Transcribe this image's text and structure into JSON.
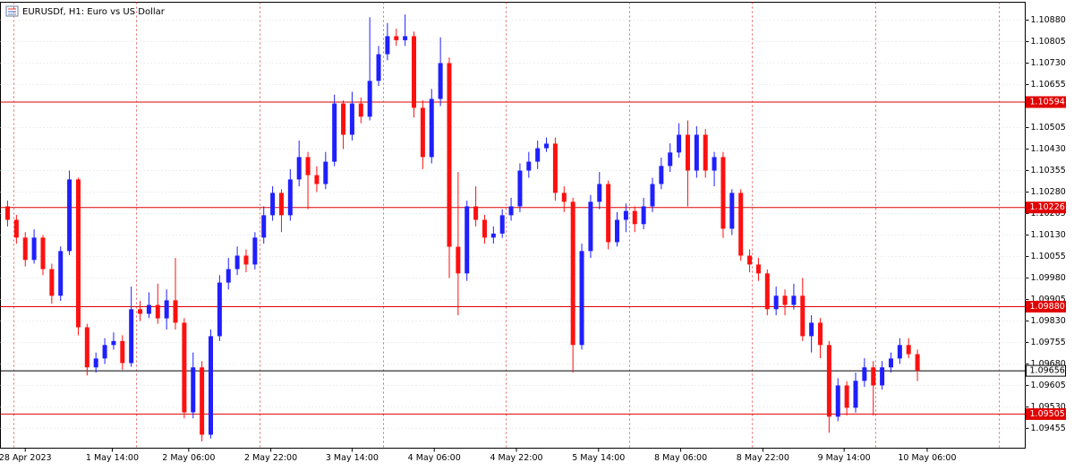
{
  "chart_data": {
    "type": "candlestick",
    "title": "EURUSDf, H1:  Euro vs US Dollar",
    "up_color": "#1f1fff",
    "down_color": "#ff1010",
    "grid": true,
    "open": [
      1.1023,
      1.10183,
      1.10121,
      1.10043,
      1.10121,
      1.10011,
      1.09918,
      1.10074,
      1.10324,
      1.09808,
      1.09668,
      1.09699,
      1.09746,
      1.0976,
      1.09683,
      1.09871,
      1.09855,
      1.09886,
      1.09839,
      1.09902,
      1.09824,
      1.09511,
      1.09668,
      1.09433,
      1.09777,
      1.09964,
      1.10011,
      1.10058,
      1.10027,
      1.10121,
      1.10199,
      1.10277,
      1.10199,
      1.10324,
      1.10402,
      1.10339,
      1.10308,
      1.10386,
      1.10589,
      1.1048,
      1.10589,
      1.10543,
      1.10668,
      1.10761,
      1.10824,
      1.1081,
      1.10824,
      1.10574,
      1.10402,
      1.10605,
      1.1073,
      1.10089,
      1.09996,
      1.1023,
      1.10183,
      1.10121,
      1.10135,
      1.10199,
      1.1023,
      1.10355,
      1.10386,
      1.10433,
      1.10449,
      1.10277,
      1.10246,
      1.09746,
      1.10074,
      1.10246,
      1.10308,
      1.10105,
      1.10183,
      1.10214,
      1.10168,
      1.1023,
      1.10308,
      1.10371,
      1.10418,
      1.1048,
      1.10355,
      1.1048,
      1.10355,
      1.10402,
      1.10152,
      1.10277,
      1.10058,
      1.10027,
      1.09996,
      1.09871,
      1.09918,
      1.09886,
      1.09918,
      1.09777,
      1.09824,
      1.09746,
      1.09496,
      1.09605,
      1.09527,
      1.09621,
      1.09668,
      1.09605,
      1.09668,
      1.09699,
      1.09746,
      1.09714
    ],
    "high": [
      1.1025,
      1.102,
      1.1014,
      1.1015,
      1.1013,
      1.1003,
      1.1009,
      1.10355,
      1.1033,
      1.0982,
      1.0972,
      1.0977,
      1.0979,
      1.0978,
      1.0995,
      1.099,
      1.0993,
      1.0996,
      1.0994,
      1.1005,
      1.0984,
      1.0972,
      1.0969,
      1.098,
      1.0999,
      1.1005,
      1.1009,
      1.1008,
      1.1014,
      1.1023,
      1.103,
      1.1029,
      1.1036,
      1.1046,
      1.1042,
      1.1037,
      1.1042,
      1.1062,
      1.106,
      1.1063,
      1.1061,
      1.1089,
      1.1079,
      1.1087,
      1.1085,
      1.109,
      1.1084,
      1.106,
      1.1064,
      1.1082,
      1.1075,
      1.1035,
      1.1025,
      1.103,
      1.102,
      1.1016,
      1.1022,
      1.1026,
      1.1038,
      1.1042,
      1.1046,
      1.1047,
      1.1047,
      1.103,
      1.1026,
      1.101,
      1.1027,
      1.1035,
      1.1032,
      1.1021,
      1.1024,
      1.1023,
      1.1026,
      1.1033,
      1.104,
      1.1045,
      1.1052,
      1.1053,
      1.1051,
      1.105,
      1.1042,
      1.1042,
      1.1029,
      1.1029,
      1.1008,
      1.1005,
      1.1001,
      1.0995,
      1.0994,
      1.0996,
      1.0998,
      1.0985,
      1.0984,
      1.0976,
      1.0963,
      1.0962,
      1.0965,
      1.097,
      1.0969,
      1.0969,
      1.0972,
      1.0977,
      1.0977,
      1.0973
    ],
    "low": [
      1.1016,
      1.101,
      1.1002,
      1.1003,
      1.0999,
      1.0989,
      1.099,
      1.1006,
      1.0978,
      1.0964,
      1.0965,
      1.0968,
      1.0973,
      1.0966,
      1.0967,
      1.0983,
      1.0984,
      1.0982,
      1.098,
      1.098,
      1.0949,
      1.0949,
      1.0941,
      1.0942,
      1.0976,
      1.0994,
      1.0999,
      1.1,
      1.1001,
      1.101,
      1.1018,
      1.1014,
      1.1018,
      1.103,
      1.1022,
      1.1028,
      1.1029,
      1.1037,
      1.1043,
      1.1046,
      1.1052,
      1.1053,
      1.1065,
      1.1074,
      1.1079,
      1.1079,
      1.1054,
      1.1036,
      1.1038,
      1.1058,
      1.0998,
      1.0985,
      1.0997,
      1.1016,
      1.101,
      1.101,
      1.1012,
      1.1018,
      1.1021,
      1.1033,
      1.1036,
      1.1042,
      1.1025,
      1.1021,
      1.0965,
      1.0973,
      1.1005,
      1.1022,
      1.1008,
      1.1009,
      1.1014,
      1.1014,
      1.1015,
      1.1021,
      1.1029,
      1.1035,
      1.104,
      1.1023,
      1.1033,
      1.1033,
      1.103,
      1.1012,
      1.1013,
      1.1004,
      1.1,
      1.0997,
      1.0985,
      1.0985,
      1.0985,
      1.0987,
      1.0976,
      1.0972,
      1.097,
      1.0944,
      1.0948,
      1.095,
      1.0951,
      1.096,
      1.095,
      1.0959,
      1.0965,
      1.0968,
      1.097,
      1.0962
    ],
    "close": [
      1.10183,
      1.10121,
      1.10043,
      1.10121,
      1.10011,
      1.09918,
      1.10074,
      1.10324,
      1.09808,
      1.09668,
      1.09699,
      1.09746,
      1.0976,
      1.09683,
      1.09871,
      1.09855,
      1.09886,
      1.09839,
      1.09902,
      1.09824,
      1.09511,
      1.09668,
      1.09433,
      1.09777,
      1.09964,
      1.10011,
      1.10058,
      1.10027,
      1.10121,
      1.10199,
      1.10277,
      1.10199,
      1.10324,
      1.10402,
      1.10339,
      1.10308,
      1.10386,
      1.10589,
      1.1048,
      1.10589,
      1.10543,
      1.10668,
      1.10761,
      1.10824,
      1.1081,
      1.10824,
      1.10574,
      1.10402,
      1.10605,
      1.1073,
      1.10089,
      1.09996,
      1.1023,
      1.10183,
      1.10121,
      1.10135,
      1.10199,
      1.1023,
      1.10355,
      1.10386,
      1.10433,
      1.10449,
      1.10277,
      1.10246,
      1.09746,
      1.10074,
      1.10246,
      1.10308,
      1.10105,
      1.10183,
      1.10214,
      1.10168,
      1.1023,
      1.10308,
      1.10371,
      1.10418,
      1.1048,
      1.10355,
      1.1048,
      1.10355,
      1.10402,
      1.10152,
      1.10277,
      1.10058,
      1.10027,
      1.09996,
      1.09871,
      1.09918,
      1.09886,
      1.09918,
      1.09777,
      1.09824,
      1.09746,
      1.09496,
      1.09605,
      1.09527,
      1.09621,
      1.09668,
      1.09605,
      1.09668,
      1.09699,
      1.09746,
      1.09714,
      1.09656
    ],
    "xlim": [
      -0.81,
      115.2
    ],
    "xticks": [
      {
        "value": 2,
        "label": "28 Apr 2023"
      },
      {
        "value": 11.85,
        "label": "1 May 14:00"
      },
      {
        "value": 20.5,
        "label": "2 May 06:00"
      },
      {
        "value": 29.8,
        "label": "2 May 22:00"
      },
      {
        "value": 39,
        "label": "3 May 14:00"
      },
      {
        "value": 48.3,
        "label": "4 May 06:00"
      },
      {
        "value": 57.6,
        "label": "4 May 22:00"
      },
      {
        "value": 66.9,
        "label": "5 May 14:00"
      },
      {
        "value": 76.2,
        "label": "8 May 06:00"
      },
      {
        "value": 85.5,
        "label": "8 May 22:00"
      },
      {
        "value": 94.7,
        "label": "9 May 14:00"
      },
      {
        "value": 104.1,
        "label": "10 May 06:00"
      }
    ],
    "xgrid": [
      0.71,
      14.59,
      28.57,
      42.55,
      56.43,
      70.42,
      84.3,
      98.28,
      112.26
    ],
    "ylim": [
      1.09386,
      1.109425
    ],
    "yticks": [
      {
        "value": 1.1088,
        "label": "1.10880"
      },
      {
        "value": 1.10805,
        "label": "1.10805"
      },
      {
        "value": 1.1073,
        "label": "1.10730"
      },
      {
        "value": 1.10655,
        "label": "1.10655"
      },
      {
        "value": 1.10505,
        "label": "1.10505"
      },
      {
        "value": 1.1043,
        "label": "1.10430"
      },
      {
        "value": 1.10355,
        "label": "1.10355"
      },
      {
        "value": 1.1028,
        "label": "1.10280"
      },
      {
        "value": 1.10205,
        "label": "1.10205"
      },
      {
        "value": 1.1013,
        "label": "1.10130"
      },
      {
        "value": 1.10055,
        "label": "1.10055"
      },
      {
        "value": 1.0998,
        "label": "1.09980"
      },
      {
        "value": 1.09905,
        "label": "1.09905"
      },
      {
        "value": 1.0983,
        "label": "1.09830"
      },
      {
        "value": 1.09755,
        "label": "1.09755"
      },
      {
        "value": 1.0968,
        "label": "1.09680"
      },
      {
        "value": 1.09605,
        "label": "1.09605"
      },
      {
        "value": 1.0953,
        "label": "1.09530"
      },
      {
        "value": 1.09455,
        "label": "1.09455"
      }
    ],
    "levels": [
      {
        "value": 1.10594,
        "color": "#e00000"
      },
      {
        "value": 1.10226,
        "color": "#e00000"
      },
      {
        "value": 1.0988,
        "label": "1.09880",
        "color": "#e00000"
      },
      {
        "value": 1.09656,
        "color": "#000000"
      },
      {
        "value": 1.09505,
        "color": "#e00000"
      }
    ]
  }
}
